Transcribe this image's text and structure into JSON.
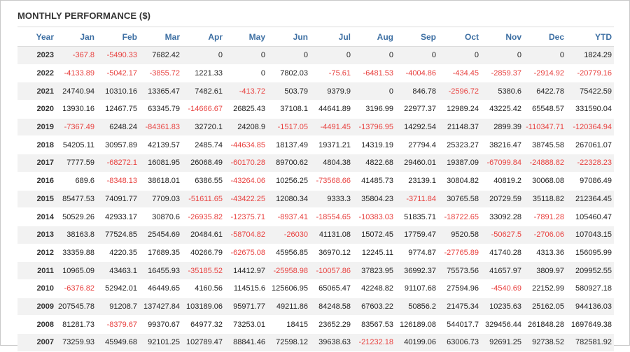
{
  "title": "MONTHLY PERFORMANCE ($)",
  "columns": [
    "Year",
    "Jan",
    "Feb",
    "Mar",
    "Apr",
    "May",
    "Jun",
    "Jul",
    "Aug",
    "Sep",
    "Oct",
    "Nov",
    "Dec",
    "YTD"
  ],
  "colors": {
    "negative": "#e8413f",
    "header": "#3d6fa3",
    "stripe": "#f2f2f2"
  },
  "rows": [
    [
      "2023",
      "-367.8",
      "-5490.33",
      "7682.42",
      "0",
      "0",
      "0",
      "0",
      "0",
      "0",
      "0",
      "0",
      "0",
      "1824.29"
    ],
    [
      "2022",
      "-4133.89",
      "-5042.17",
      "-3855.72",
      "1221.33",
      "0",
      "7802.03",
      "-75.61",
      "-6481.53",
      "-4004.86",
      "-434.45",
      "-2859.37",
      "-2914.92",
      "-20779.16"
    ],
    [
      "2021",
      "24740.94",
      "10310.16",
      "13365.47",
      "7482.61",
      "-413.72",
      "503.79",
      "9379.9",
      "0",
      "846.78",
      "-2596.72",
      "5380.6",
      "6422.78",
      "75422.59"
    ],
    [
      "2020",
      "13930.16",
      "12467.75",
      "63345.79",
      "-14666.67",
      "26825.43",
      "37108.1",
      "44641.89",
      "3196.99",
      "22977.37",
      "12989.24",
      "43225.42",
      "65548.57",
      "331590.04"
    ],
    [
      "2019",
      "-7367.49",
      "6248.24",
      "-84361.83",
      "32720.1",
      "24208.9",
      "-1517.05",
      "-4491.45",
      "-13796.95",
      "14292.54",
      "21148.37",
      "2899.39",
      "-110347.71",
      "-120364.94"
    ],
    [
      "2018",
      "54205.11",
      "30957.89",
      "42139.57",
      "2485.74",
      "-44634.85",
      "18137.49",
      "19371.21",
      "14319.19",
      "27794.4",
      "25323.27",
      "38216.47",
      "38745.58",
      "267061.07"
    ],
    [
      "2017",
      "7777.59",
      "-68272.1",
      "16081.95",
      "26068.49",
      "-60170.28",
      "89700.62",
      "4804.38",
      "4822.68",
      "29460.01",
      "19387.09",
      "-67099.84",
      "-24888.82",
      "-22328.23"
    ],
    [
      "2016",
      "689.6",
      "-8348.13",
      "38618.01",
      "6386.55",
      "-43264.06",
      "10256.25",
      "-73568.66",
      "41485.73",
      "23139.1",
      "30804.82",
      "40819.2",
      "30068.08",
      "97086.49"
    ],
    [
      "2015",
      "85477.53",
      "74091.77",
      "7709.03",
      "-51611.65",
      "-43422.25",
      "12080.34",
      "9333.3",
      "35804.23",
      "-3711.84",
      "30765.58",
      "20729.59",
      "35118.82",
      "212364.45"
    ],
    [
      "2014",
      "50529.26",
      "42933.17",
      "30870.6",
      "-26935.82",
      "-12375.71",
      "-8937.41",
      "-18554.65",
      "-10383.03",
      "51835.71",
      "-18722.65",
      "33092.28",
      "-7891.28",
      "105460.47"
    ],
    [
      "2013",
      "38163.8",
      "77524.85",
      "25454.69",
      "20484.61",
      "-58704.82",
      "-26030",
      "41131.08",
      "15072.45",
      "17759.47",
      "9520.58",
      "-50627.5",
      "-2706.06",
      "107043.15"
    ],
    [
      "2012",
      "33359.88",
      "4220.35",
      "17689.35",
      "40266.79",
      "-62675.08",
      "45956.85",
      "36970.12",
      "12245.11",
      "9774.87",
      "-27765.89",
      "41740.28",
      "4313.36",
      "156095.99"
    ],
    [
      "2011",
      "10965.09",
      "43463.1",
      "16455.93",
      "-35185.52",
      "14412.97",
      "-25958.98",
      "-10057.86",
      "37823.95",
      "36992.37",
      "75573.56",
      "41657.97",
      "3809.97",
      "209952.55"
    ],
    [
      "2010",
      "-6376.82",
      "52942.01",
      "46449.65",
      "4160.56",
      "114515.6",
      "125606.95",
      "65065.47",
      "42248.82",
      "91107.68",
      "27594.96",
      "-4540.69",
      "22152.99",
      "580927.18"
    ],
    [
      "2009",
      "207545.78",
      "91208.7",
      "137427.84",
      "103189.06",
      "95971.77",
      "49211.86",
      "84248.58",
      "67603.22",
      "50856.2",
      "21475.34",
      "10235.63",
      "25162.05",
      "944136.03"
    ],
    [
      "2008",
      "81281.73",
      "-8379.67",
      "99370.67",
      "64977.32",
      "73253.01",
      "18415",
      "23652.29",
      "83567.53",
      "126189.08",
      "544017.7",
      "329456.44",
      "261848.28",
      "1697649.38"
    ],
    [
      "2007",
      "73259.93",
      "45949.68",
      "92101.25",
      "102789.47",
      "88841.46",
      "72598.12",
      "39638.63",
      "-21232.18",
      "40199.06",
      "63006.73",
      "92691.25",
      "92738.52",
      "782581.92"
    ]
  ]
}
